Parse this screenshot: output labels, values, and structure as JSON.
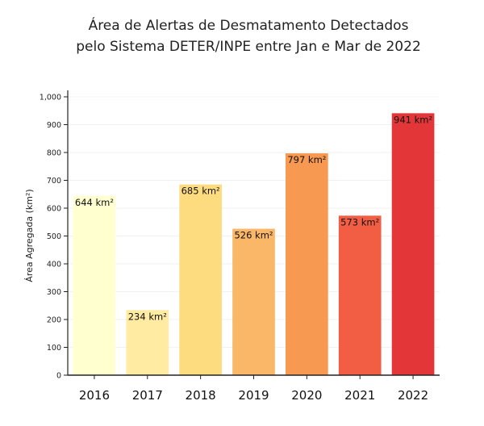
{
  "chart_data": {
    "type": "bar",
    "title_lines": [
      "Área de Alertas de Desmatamento Detectados",
      "pelo Sistema DETER/INPE entre Jan e Mar de 2022"
    ],
    "xlabel": "",
    "ylabel": "Área Agregada (km²)",
    "ylim": [
      0,
      1000
    ],
    "yticks": [
      0,
      100,
      200,
      300,
      400,
      500,
      600,
      700,
      800,
      900,
      1000
    ],
    "ytick_labels": [
      "0",
      "100",
      "200",
      "300",
      "400",
      "500",
      "600",
      "700",
      "800",
      "900",
      "1,000"
    ],
    "categories": [
      "2016",
      "2017",
      "2018",
      "2019",
      "2020",
      "2021",
      "2022"
    ],
    "values": [
      644,
      234,
      685,
      526,
      797,
      573,
      941
    ],
    "value_labels": [
      "644 km²",
      "234 km²",
      "685 km²",
      "526 km²",
      "797 km²",
      "573 km²",
      "941 km²"
    ],
    "colors": [
      "#ffffd0",
      "#ffeca2",
      "#fddb7f",
      "#fbb768",
      "#f79950",
      "#f25e43",
      "#e23638"
    ],
    "grid": true,
    "legend": "none"
  }
}
